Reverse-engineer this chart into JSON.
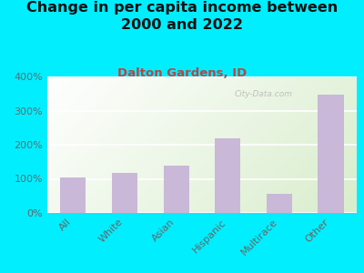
{
  "title": "Change in per capita income between\n2000 and 2022",
  "subtitle": "Dalton Gardens, ID",
  "categories": [
    "All",
    "White",
    "Asian",
    "Hispanic",
    "Multirace",
    "Other"
  ],
  "values": [
    105,
    118,
    138,
    220,
    55,
    348
  ],
  "bar_color": "#c9b8d8",
  "background_outer": "#00eeff",
  "title_fontsize": 11.5,
  "subtitle_fontsize": 9.5,
  "subtitle_color": "#bb4444",
  "title_color": "#111111",
  "tick_label_color": "#666666",
  "ylim": [
    0,
    400
  ],
  "yticks": [
    0,
    100,
    200,
    300,
    400
  ],
  "watermark": "City-Data.com",
  "watermark_color": "#aaaaaa"
}
